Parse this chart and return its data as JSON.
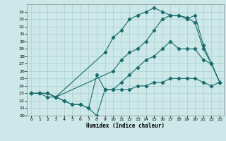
{
  "xlabel": "Humidex (Indice chaleur)",
  "xlim": [
    -0.5,
    23.5
  ],
  "ylim": [
    20,
    35
  ],
  "yticks": [
    20,
    21,
    22,
    23,
    24,
    25,
    26,
    27,
    28,
    29,
    30,
    31,
    32,
    33,
    34
  ],
  "xticks": [
    0,
    1,
    2,
    3,
    4,
    5,
    6,
    7,
    8,
    9,
    10,
    11,
    12,
    13,
    14,
    15,
    16,
    17,
    18,
    19,
    20,
    21,
    22,
    23
  ],
  "bg_color": "#cce8e8",
  "grid_color": "#aacfcf",
  "line_color": "#1a6b6b",
  "line1_x": [
    0,
    1,
    2,
    3,
    9,
    10,
    11,
    12,
    13,
    14,
    15,
    16,
    17,
    18,
    19,
    20,
    21,
    22,
    23
  ],
  "line1_y": [
    23,
    23,
    23,
    22.5,
    28.5,
    30.5,
    31.5,
    33,
    33.5,
    34,
    34.5,
    34,
    33.5,
    33.5,
    33.2,
    32.5,
    29,
    27,
    24.5
  ],
  "line2_x": [
    0,
    1,
    2,
    3,
    4,
    5,
    6,
    7,
    8,
    9,
    10,
    11,
    12,
    13,
    14,
    15,
    16,
    17,
    18,
    19,
    20,
    21,
    22,
    23
  ],
  "line2_y": [
    23,
    23,
    22.5,
    22.5,
    22,
    21.5,
    21.5,
    21,
    20,
    23.5,
    23.5,
    24.5,
    25.5,
    26.5,
    27.5,
    28,
    29,
    30,
    29,
    29,
    29,
    27.5,
    27,
    24.5
  ],
  "line3_x": [
    0,
    1,
    2,
    3,
    10,
    11,
    12,
    13,
    14,
    15,
    16,
    17,
    18,
    19,
    20,
    21,
    22,
    23
  ],
  "line3_y": [
    23,
    23,
    23,
    22.5,
    26,
    27.5,
    28.5,
    29,
    30,
    31.5,
    33,
    33.5,
    33.5,
    33,
    33.5,
    29.5,
    27,
    24.5
  ],
  "line4_x": [
    0,
    1,
    2,
    3,
    4,
    5,
    6,
    7,
    8,
    9,
    10,
    11,
    12,
    13,
    14,
    15,
    16,
    17,
    18,
    19,
    20,
    21,
    22,
    23
  ],
  "line4_y": [
    23,
    23,
    23,
    22.5,
    22,
    21.5,
    21.5,
    21,
    25.5,
    23.5,
    23.5,
    23.5,
    23.5,
    24,
    24,
    24.5,
    24.5,
    25,
    25,
    25,
    25,
    24.5,
    24,
    24.5
  ]
}
